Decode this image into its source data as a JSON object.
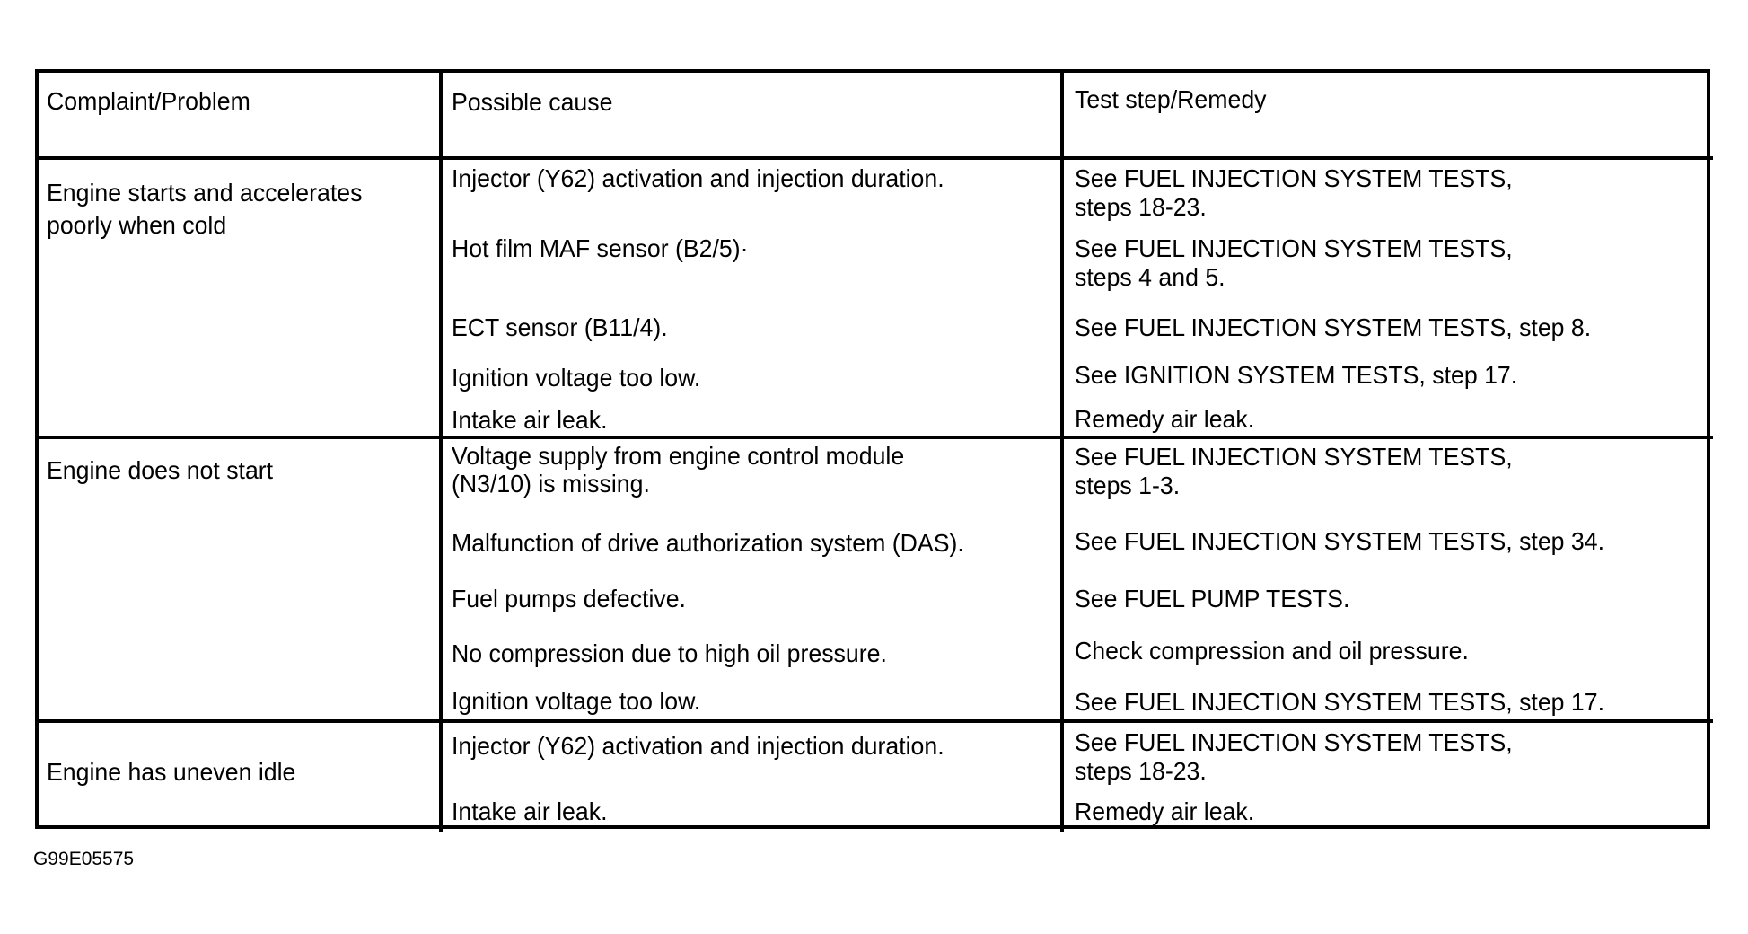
{
  "headers": [
    "Complaint/Problem",
    "Possible cause",
    "Test step/Remedy"
  ],
  "rows": [
    {
      "complaint": [
        "Engine starts and accelerates",
        "poorly when cold"
      ],
      "items": [
        {
          "cause": [
            "Injector (Y62) activation and injection duration."
          ],
          "remedy": [
            "See FUEL INJECTION SYSTEM TESTS,",
            "steps 18-23."
          ]
        },
        {
          "cause": [
            "Hot film MAF sensor (B2/5)·"
          ],
          "remedy": [
            "See FUEL INJECTION SYSTEM TESTS,",
            "steps 4 and 5."
          ]
        },
        {
          "cause": [
            "ECT sensor (B11/4)."
          ],
          "remedy": [
            "See FUEL INJECTION SYSTEM TESTS, step 8."
          ]
        },
        {
          "cause": [
            "Ignition voltage too low."
          ],
          "remedy": [
            "See IGNITION SYSTEM TESTS, step 17."
          ]
        },
        {
          "cause": [
            "Intake air leak."
          ],
          "remedy": [
            "Remedy air leak."
          ]
        }
      ]
    },
    {
      "complaint": [
        "Engine does not start"
      ],
      "items": [
        {
          "cause": [
            "Voltage supply from engine control module",
            "(N3/10) is missing."
          ],
          "remedy": [
            "See FUEL INJECTION SYSTEM TESTS,",
            "steps 1-3."
          ]
        },
        {
          "cause": [
            "Malfunction of drive authorization system (DAS)."
          ],
          "remedy": [
            "See FUEL INJECTION SYSTEM TESTS, step 34."
          ]
        },
        {
          "cause": [
            "Fuel pumps defective."
          ],
          "remedy": [
            "See FUEL PUMP TESTS."
          ]
        },
        {
          "cause": [
            "No compression due to high oil pressure."
          ],
          "remedy": [
            "Check compression and oil pressure."
          ]
        },
        {
          "cause": [
            "Ignition voltage too low."
          ],
          "remedy": [
            "See FUEL INJECTION SYSTEM TESTS, step 17."
          ]
        }
      ]
    },
    {
      "complaint": [
        "Engine has uneven idle"
      ],
      "items": [
        {
          "cause": [
            "Injector (Y62) activation and injection duration."
          ],
          "remedy": [
            "See FUEL INJECTION SYSTEM TESTS,",
            "steps 18-23."
          ]
        },
        {
          "cause": [
            "Intake air leak."
          ],
          "remedy": [
            "Remedy air leak."
          ]
        }
      ]
    }
  ],
  "figure_id": "G99E05575"
}
